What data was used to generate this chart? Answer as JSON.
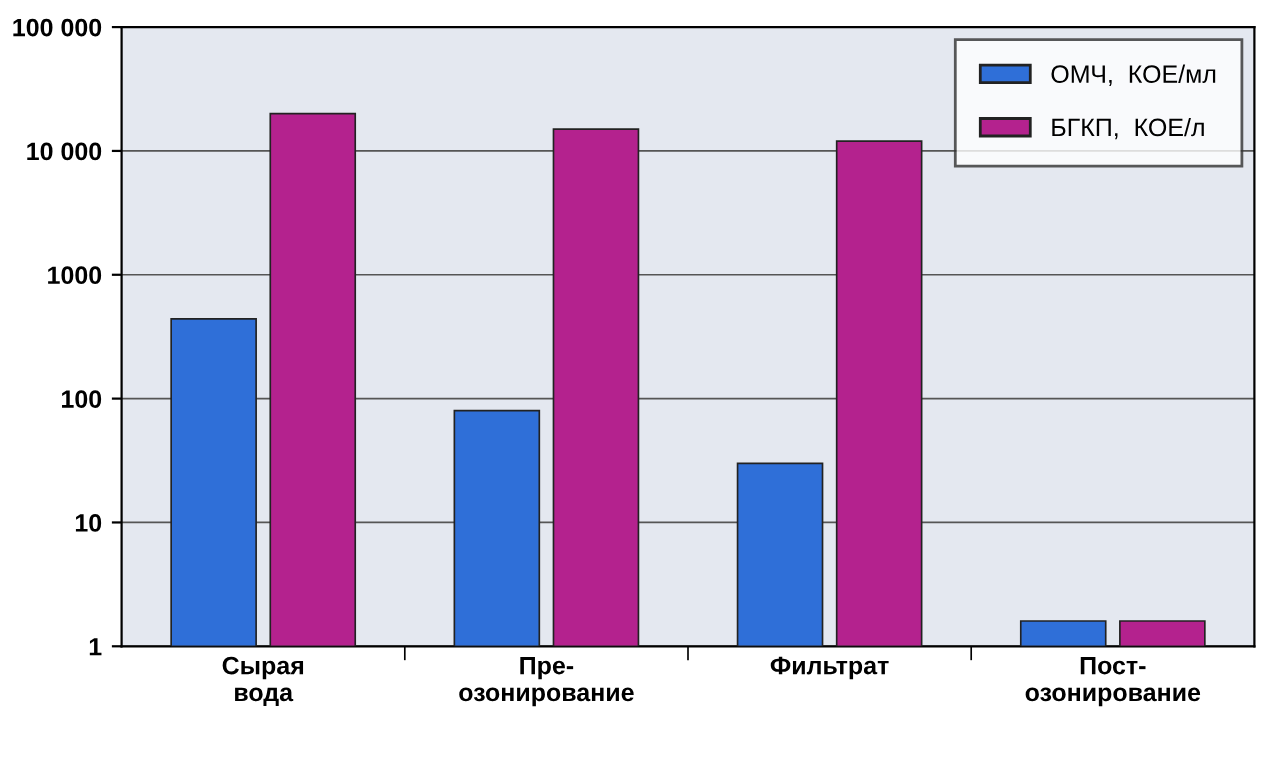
{
  "chart_data": {
    "type": "bar",
    "categories": [
      "Сырая\nвода",
      "Пре-\nозонирование",
      "Фильтрат",
      "Пост-\nозонирование"
    ],
    "series": [
      {
        "name": "ОМЧ,  КОЕ/мл",
        "color": "#2f6fd8",
        "values": [
          440,
          80,
          30,
          1.6
        ]
      },
      {
        "name": "БГКП,  КОЕ/л",
        "color": "#b4228e",
        "values": [
          20000,
          15000,
          12000,
          1.6
        ]
      }
    ],
    "log": true,
    "ylim": [
      1,
      100000
    ],
    "yticks": [
      1,
      10,
      100,
      1000,
      {
        "value": 10000,
        "label": "10 000"
      },
      {
        "value": 100000,
        "label": "100 000"
      }
    ],
    "grid": "y",
    "legend": "top right"
  }
}
